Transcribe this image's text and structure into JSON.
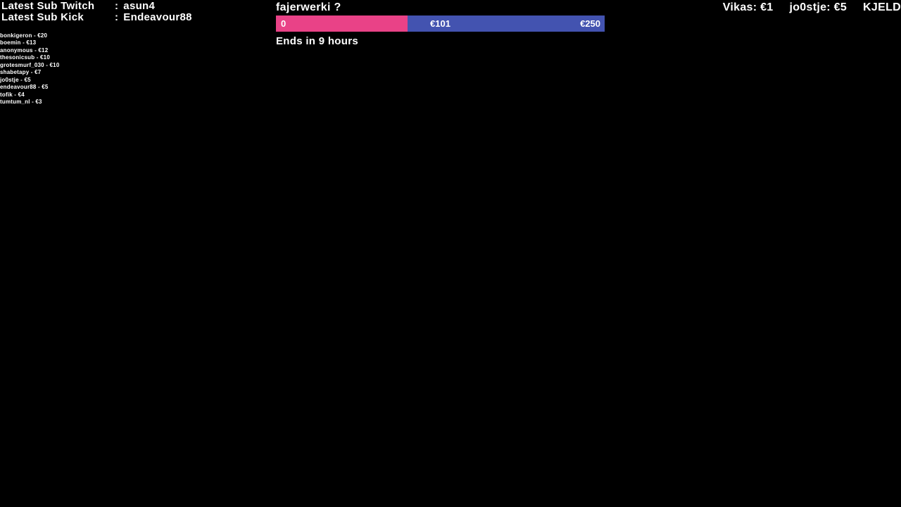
{
  "colors": {
    "background": "#000000",
    "text": "#ffffff",
    "goal_bar_fill": "#e94287",
    "goal_bar_track": "#4353b0"
  },
  "latest_subs": {
    "rows": [
      {
        "label": "Latest Sub Twitch",
        "separator": ":",
        "value": "asun4"
      },
      {
        "label": "Latest Sub Kick",
        "separator": ":",
        "value": "Endeavour88"
      }
    ]
  },
  "donors": [
    "bonkigeron - €20",
    "boemin - €13",
    "anonymous - €12",
    "thesonicsub - €10",
    "grotesmurf_030 - €10",
    "shabetapy - €7",
    "jo0stje - €5",
    "endeavour88 - €5",
    "tofik - €4",
    "tumtum_nl - €3"
  ],
  "goal": {
    "title": "fajerwerki ?",
    "bar": {
      "min_label": "0",
      "current_label": "€101",
      "max_label": "€250",
      "percent_filled": 40
    },
    "ends_text": "Ends in 9 hours"
  },
  "ticker": {
    "items": [
      "Vikas: €1",
      "jo0stje: €5",
      "KJELD"
    ]
  }
}
